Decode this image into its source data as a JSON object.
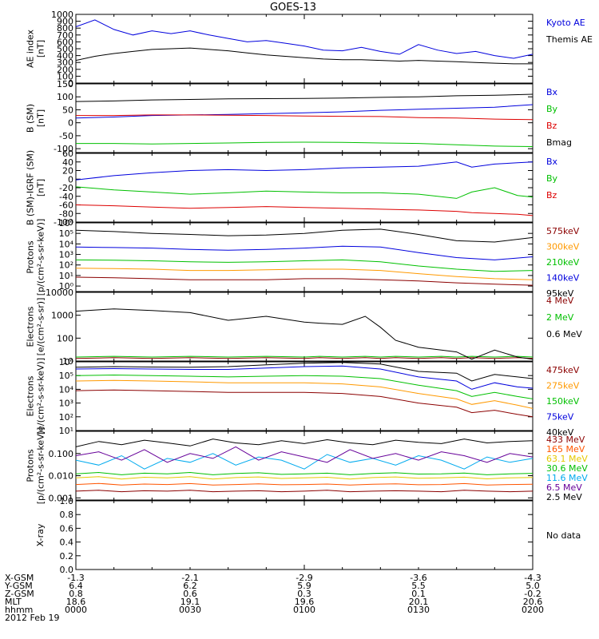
{
  "title": "GOES-13",
  "chart_data": [
    {
      "type": "line",
      "panel": "ae",
      "ylabel": [
        "AE index",
        "[nT]"
      ],
      "ylim": [
        0,
        1000
      ],
      "yticks": [
        "0",
        "100",
        "200",
        "300",
        "400",
        "500",
        "600",
        "700",
        "800",
        "900",
        "1000"
      ],
      "x": [
        0,
        2.5,
        5,
        7.5,
        10,
        12.5,
        15,
        17.5,
        20,
        22.5,
        25,
        27.5,
        30,
        32.5,
        35,
        37.5,
        40,
        42.5,
        45,
        47.5,
        50,
        52.5,
        55,
        57.5,
        60
      ],
      "series": [
        {
          "name": "Kyoto AE",
          "color": "#0000dd",
          "values": [
            820,
            920,
            780,
            700,
            760,
            720,
            760,
            700,
            650,
            600,
            620,
            580,
            540,
            480,
            470,
            520,
            460,
            420,
            560,
            480,
            430,
            460,
            400,
            360,
            420
          ]
        },
        {
          "name": "Themis AE",
          "color": "#000000",
          "values": [
            330,
            390,
            430,
            460,
            490,
            500,
            510,
            490,
            470,
            440,
            410,
            390,
            370,
            350,
            340,
            340,
            330,
            320,
            330,
            320,
            310,
            300,
            290,
            280,
            280
          ]
        }
      ]
    },
    {
      "type": "line",
      "panel": "b_sm",
      "ylabel": [
        "B (SM)",
        "[nT]"
      ],
      "ylim": [
        -115,
        150
      ],
      "yticks": [
        "-100",
        "-50",
        "0",
        "50",
        "100",
        "150"
      ],
      "x": [
        0,
        5,
        10,
        15,
        20,
        25,
        30,
        35,
        40,
        45,
        50,
        55,
        60
      ],
      "series": [
        {
          "name": "Bx",
          "color": "#0000dd",
          "values": [
            18,
            22,
            28,
            30,
            32,
            35,
            38,
            42,
            48,
            52,
            56,
            60,
            70
          ]
        },
        {
          "name": "By",
          "color": "#00c000",
          "values": [
            -80,
            -80,
            -82,
            -80,
            -78,
            -76,
            -75,
            -76,
            -78,
            -80,
            -85,
            -90,
            -92
          ]
        },
        {
          "name": "Bz",
          "color": "#dd0000",
          "values": [
            28,
            28,
            30,
            30,
            29,
            28,
            26,
            25,
            24,
            20,
            18,
            14,
            12
          ]
        },
        {
          "name": "Bmag",
          "color": "#000000",
          "values": [
            82,
            84,
            88,
            90,
            92,
            93,
            94,
            95,
            98,
            100,
            104,
            106,
            110
          ]
        }
      ]
    },
    {
      "type": "line",
      "panel": "b_minus_igrf",
      "ylabel": [
        "B (SM)-IGRF (SM)",
        "[nT]"
      ],
      "ylim": [
        -100,
        60
      ],
      "yticks": [
        "-100",
        "-80",
        "-60",
        "-40",
        "-20",
        "0",
        "20",
        "40",
        "60"
      ],
      "x": [
        0,
        5,
        10,
        15,
        20,
        25,
        30,
        35,
        40,
        45,
        50,
        52,
        55,
        58,
        60
      ],
      "series": [
        {
          "name": "Bx",
          "color": "#0000dd",
          "values": [
            -2,
            8,
            15,
            20,
            22,
            20,
            22,
            26,
            28,
            30,
            40,
            28,
            35,
            38,
            40
          ]
        },
        {
          "name": "By",
          "color": "#00c000",
          "values": [
            -18,
            -25,
            -30,
            -35,
            -32,
            -28,
            -30,
            -32,
            -32,
            -35,
            -45,
            -30,
            -20,
            -38,
            -42
          ]
        },
        {
          "name": "Bz",
          "color": "#dd0000",
          "values": [
            -60,
            -62,
            -65,
            -68,
            -66,
            -64,
            -66,
            -68,
            -70,
            -72,
            -75,
            -78,
            -80,
            -82,
            -85
          ]
        }
      ]
    },
    {
      "type": "line",
      "panel": "protons_low",
      "ylabel": [
        "Protons",
        "[p/(cm²-s-sr-keV)]"
      ],
      "scale": "log",
      "ylim": [
        0.3,
        1000000
      ],
      "yticks": [
        "10⁰",
        "10¹",
        "10²",
        "10³",
        "10⁴",
        "10⁵",
        "10⁶"
      ],
      "x": [
        0,
        5,
        10,
        15,
        20,
        25,
        30,
        35,
        40,
        45,
        50,
        55,
        60
      ],
      "series": [
        {
          "name": "575keV",
          "color": "#8b0000",
          "values": [
            7,
            6,
            5,
            4,
            4,
            4,
            5,
            5,
            4,
            3,
            2,
            1.5,
            1.2
          ]
        },
        {
          "name": "300keV",
          "color": "#ff9900",
          "values": [
            50,
            45,
            40,
            30,
            30,
            35,
            40,
            40,
            30,
            15,
            8,
            5,
            4
          ]
        },
        {
          "name": "210keV",
          "color": "#00c000",
          "values": [
            300,
            280,
            250,
            200,
            180,
            200,
            250,
            300,
            200,
            80,
            40,
            25,
            30
          ]
        },
        {
          "name": "140keV",
          "color": "#0000dd",
          "values": [
            5000,
            4500,
            4000,
            3000,
            2500,
            3000,
            4000,
            6000,
            5000,
            1500,
            500,
            300,
            600
          ]
        },
        {
          "name": "95keV",
          "color": "#000000",
          "values": [
            200000,
            150000,
            100000,
            80000,
            60000,
            70000,
            100000,
            200000,
            250000,
            80000,
            20000,
            15000,
            40000
          ]
        }
      ]
    },
    {
      "type": "line",
      "panel": "electrons_high",
      "ylabel": [
        "Electrons",
        "[e/(cm²-s-sr)]"
      ],
      "scale": "log",
      "ylim": [
        10,
        10000
      ],
      "yticks": [
        "10",
        "100",
        "1000",
        "10000"
      ],
      "x": [
        0,
        5,
        10,
        15,
        20,
        25,
        30,
        32,
        35,
        38,
        40,
        42,
        45,
        48,
        50,
        52,
        55,
        58,
        60
      ],
      "series": [
        {
          "name": "4 MeV",
          "color": "#8b0000",
          "values": [
            13,
            14,
            13,
            14,
            13,
            14,
            13,
            14,
            13,
            14,
            13,
            14,
            13,
            14,
            13,
            14,
            13,
            14,
            13
          ]
        },
        {
          "name": "2 MeV",
          "color": "#00c000",
          "values": [
            15,
            16,
            15,
            16,
            15,
            16,
            15,
            16,
            15,
            16,
            15,
            16,
            15,
            16,
            15,
            16,
            15,
            16,
            15
          ]
        },
        {
          "name": "0.6 MeV",
          "color": "#000000",
          "values": [
            1500,
            1900,
            1600,
            1300,
            600,
            900,
            500,
            450,
            400,
            900,
            300,
            80,
            40,
            30,
            25,
            12,
            30,
            15,
            12
          ]
        }
      ]
    },
    {
      "type": "line",
      "panel": "electrons_low",
      "ylabel": [
        "Electrons",
        "[e/(cm²-s-sr-keV)]"
      ],
      "scale": "log",
      "ylim": [
        10,
        1000000
      ],
      "yticks": [
        "10¹",
        "10²",
        "10³",
        "10⁴",
        "10⁵",
        "10⁶"
      ],
      "x": [
        0,
        5,
        10,
        15,
        20,
        25,
        30,
        35,
        40,
        45,
        50,
        52,
        55,
        58,
        60
      ],
      "series": [
        {
          "name": "475keV",
          "color": "#8b0000",
          "values": [
            8000,
            9000,
            8000,
            7000,
            6000,
            6000,
            6000,
            5000,
            3000,
            1000,
            500,
            200,
            300,
            150,
            100
          ]
        },
        {
          "name": "275keV",
          "color": "#ff9900",
          "values": [
            40000,
            45000,
            40000,
            35000,
            30000,
            30000,
            30000,
            25000,
            15000,
            5000,
            2000,
            800,
            1500,
            700,
            400
          ]
        },
        {
          "name": "150keV",
          "color": "#00c000",
          "values": [
            100000,
            110000,
            100000,
            90000,
            80000,
            90000,
            100000,
            90000,
            60000,
            20000,
            8000,
            3000,
            6000,
            3000,
            2000
          ]
        },
        {
          "name": "75keV",
          "color": "#0000dd",
          "values": [
            300000,
            320000,
            300000,
            280000,
            280000,
            350000,
            450000,
            500000,
            300000,
            80000,
            40000,
            10000,
            30000,
            15000,
            12000
          ]
        },
        {
          "name": "40keV",
          "color": "#000000",
          "values": [
            400000,
            450000,
            420000,
            400000,
            450000,
            600000,
            800000,
            900000,
            700000,
            200000,
            150000,
            40000,
            120000,
            80000,
            60000
          ]
        }
      ]
    },
    {
      "type": "line",
      "panel": "protons_high",
      "ylabel": [
        "Protons",
        "[p/(cm²-s-sr-keV)]"
      ],
      "scale": "log",
      "ylim": [
        0.0008,
        1
      ],
      "yticks": [
        "0.001",
        "0.010",
        "0.100"
      ],
      "x": [
        0,
        3,
        6,
        9,
        12,
        15,
        18,
        21,
        24,
        27,
        30,
        33,
        36,
        39,
        42,
        45,
        48,
        51,
        54,
        57,
        60
      ],
      "series": [
        {
          "name": "433 MeV",
          "color": "#8b0000",
          "values": [
            0.002,
            0.0022,
            0.0019,
            0.0021,
            0.002,
            0.0022,
            0.0019,
            0.002,
            0.0021,
            0.0019,
            0.002,
            0.0022,
            0.0019,
            0.002,
            0.0021,
            0.002,
            0.0019,
            0.0022,
            0.002,
            0.0019,
            0.002
          ]
        },
        {
          "name": "165 MeV",
          "color": "#ff5500",
          "values": [
            0.004,
            0.0045,
            0.0038,
            0.0042,
            0.004,
            0.0044,
            0.0038,
            0.004,
            0.0043,
            0.0039,
            0.004,
            0.0042,
            0.0038,
            0.0041,
            0.0043,
            0.0039,
            0.004,
            0.0044,
            0.0038,
            0.004,
            0.0041
          ]
        },
        {
          "name": "63.1 MeV",
          "color": "#e6c800",
          "values": [
            0.008,
            0.009,
            0.007,
            0.0085,
            0.008,
            0.009,
            0.007,
            0.0082,
            0.0088,
            0.0075,
            0.008,
            0.0085,
            0.007,
            0.0082,
            0.0088,
            0.0076,
            0.008,
            0.0086,
            0.0072,
            0.008,
            0.0083
          ]
        },
        {
          "name": "30.6 MeV",
          "color": "#00c000",
          "values": [
            0.012,
            0.014,
            0.011,
            0.013,
            0.012,
            0.014,
            0.011,
            0.0125,
            0.0135,
            0.0115,
            0.012,
            0.013,
            0.011,
            0.0125,
            0.0135,
            0.0118,
            0.012,
            0.0132,
            0.011,
            0.012,
            0.0128
          ]
        },
        {
          "name": "11.6 MeV",
          "color": "#00aaee",
          "values": [
            0.05,
            0.03,
            0.08,
            0.02,
            0.06,
            0.04,
            0.1,
            0.03,
            0.07,
            0.05,
            0.02,
            0.09,
            0.04,
            0.06,
            0.03,
            0.08,
            0.05,
            0.02,
            0.07,
            0.04,
            0.06
          ]
        },
        {
          "name": "6.5 MeV",
          "color": "#660099",
          "values": [
            0.08,
            0.12,
            0.05,
            0.15,
            0.04,
            0.1,
            0.06,
            0.2,
            0.05,
            0.12,
            0.07,
            0.04,
            0.15,
            0.06,
            0.1,
            0.05,
            0.12,
            0.08,
            0.04,
            0.1,
            0.07
          ]
        },
        {
          "name": "2.5 MeV",
          "color": "#000000",
          "values": [
            0.2,
            0.35,
            0.25,
            0.4,
            0.3,
            0.22,
            0.45,
            0.3,
            0.25,
            0.38,
            0.28,
            0.42,
            0.3,
            0.25,
            0.4,
            0.32,
            0.28,
            0.45,
            0.3,
            0.35,
            0.38
          ]
        }
      ]
    },
    {
      "type": "line",
      "panel": "xray",
      "ylabel": [
        "X-ray"
      ],
      "ylim": [
        0,
        1
      ],
      "yticks": [
        "0.0",
        "0.2",
        "0.4",
        "0.6",
        "0.8",
        "1.0"
      ],
      "series": [],
      "note": "No data"
    }
  ],
  "footer": {
    "labels": [
      "X-GSM",
      "Y-GSM",
      "Z-GSM",
      "MLT",
      "hhmm",
      "2012 Feb 19"
    ],
    "columns": [
      {
        "xgsm": "-1.3",
        "ygsm": "6.4",
        "zgsm": "0.8",
        "mlt": "18.6",
        "hhmm": "0000"
      },
      {
        "xgsm": "-2.1",
        "ygsm": "6.2",
        "zgsm": "0.6",
        "mlt": "19.1",
        "hhmm": "0030"
      },
      {
        "xgsm": "-2.9",
        "ygsm": "5.9",
        "zgsm": "0.3",
        "mlt": "19.6",
        "hhmm": "0100"
      },
      {
        "xgsm": "-3.6",
        "ygsm": "5.5",
        "zgsm": "0.1",
        "mlt": "20.1",
        "hhmm": "0130"
      },
      {
        "xgsm": "-4.3",
        "ygsm": "5.0",
        "zgsm": "-0.2",
        "mlt": "20.6",
        "hhmm": "0200"
      }
    ]
  }
}
